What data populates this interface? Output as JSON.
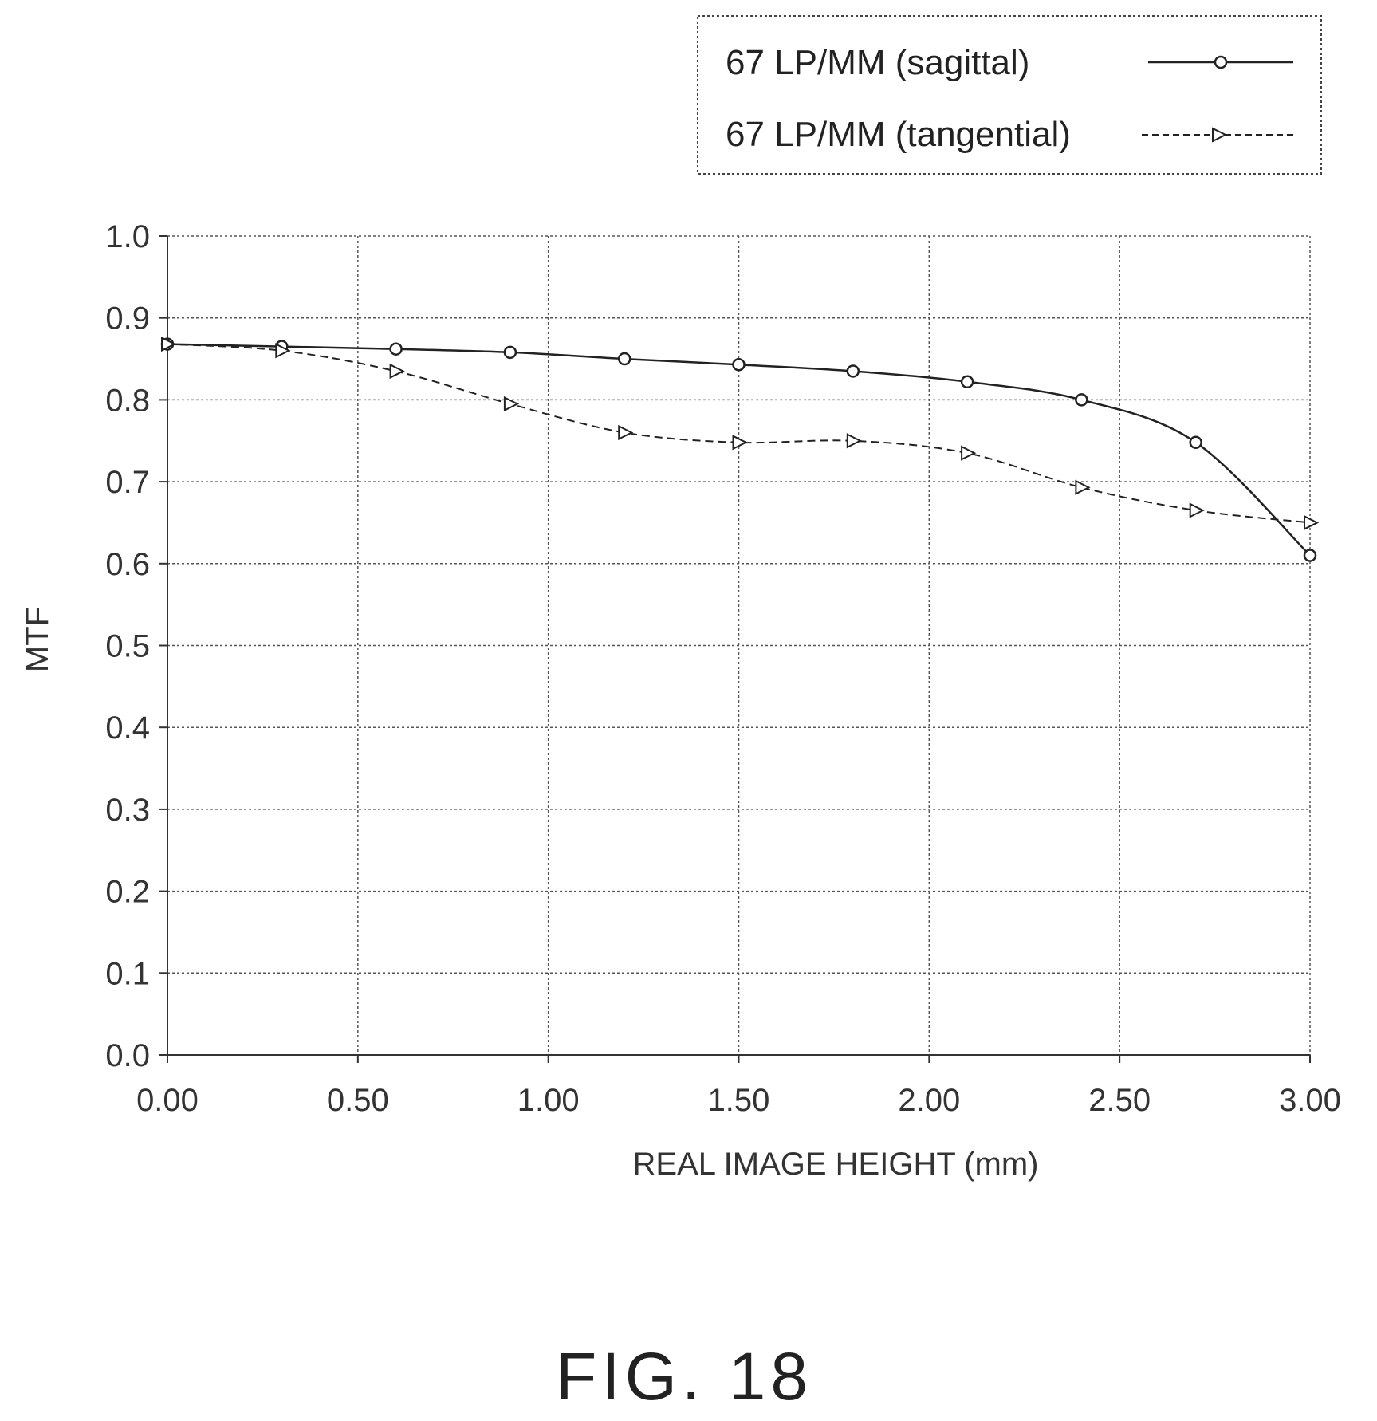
{
  "chart_data": {
    "type": "line",
    "xlabel": "REAL IMAGE HEIGHT (mm)",
    "ylabel": "MTF",
    "xlim": [
      0,
      3.0
    ],
    "ylim": [
      0,
      1.0
    ],
    "x_ticks": [
      "0.00",
      "0.50",
      "1.00",
      "1.50",
      "2.00",
      "2.50",
      "3.00"
    ],
    "y_ticks": [
      "0.0",
      "0.1",
      "0.2",
      "0.3",
      "0.4",
      "0.5",
      "0.6",
      "0.7",
      "0.8",
      "0.9",
      "1.0"
    ],
    "grid": true,
    "legend_position": "top-right",
    "series": [
      {
        "name": "67 LP/MM (sagittal)",
        "line_style": "solid",
        "marker": "circle",
        "x": [
          0.0,
          0.3,
          0.6,
          0.9,
          1.2,
          1.5,
          1.8,
          2.1,
          2.4,
          2.7,
          3.0
        ],
        "y": [
          0.868,
          0.865,
          0.862,
          0.858,
          0.85,
          0.843,
          0.835,
          0.822,
          0.8,
          0.748,
          0.61
        ]
      },
      {
        "name": "67 LP/MM (tangential)",
        "line_style": "dashed",
        "marker": "triangle",
        "x": [
          0.0,
          0.3,
          0.6,
          0.9,
          1.2,
          1.5,
          1.8,
          2.1,
          2.4,
          2.7,
          3.0
        ],
        "y": [
          0.868,
          0.86,
          0.835,
          0.795,
          0.76,
          0.748,
          0.75,
          0.735,
          0.693,
          0.665,
          0.65
        ]
      }
    ]
  },
  "caption": "FIG. 18"
}
